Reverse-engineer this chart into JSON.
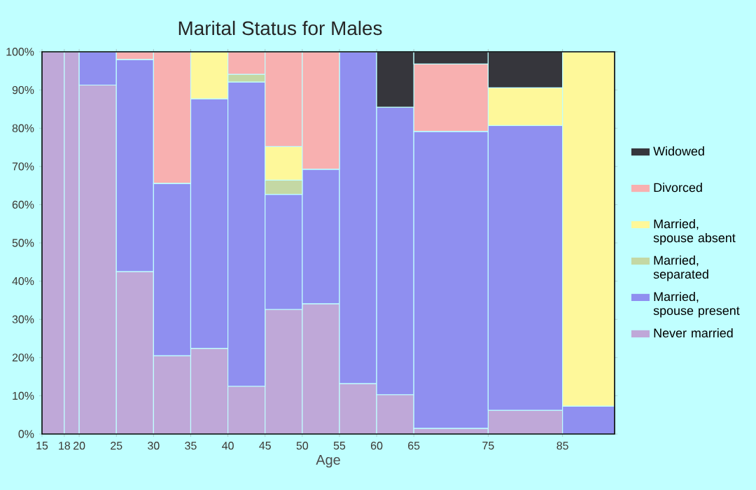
{
  "chart_data": {
    "type": "bar",
    "stacked": true,
    "title": "Marital Status for Males",
    "xlabel": "Age",
    "x": [
      16.5,
      19,
      22.5,
      27.5,
      32.5,
      37.5,
      42.5,
      47.5,
      52.5,
      57.5,
      62.5,
      70,
      80,
      88.5
    ],
    "xlim": [
      15,
      92
    ],
    "xticks": [
      15,
      18,
      20,
      25,
      30,
      35,
      40,
      45,
      50,
      55,
      60,
      65,
      75,
      85
    ],
    "ylim": [
      0,
      100
    ],
    "yticks": [
      {
        "value": 0,
        "label": "0%"
      },
      {
        "value": 10,
        "label": "10%"
      },
      {
        "value": 20,
        "label": "20%"
      },
      {
        "value": 30,
        "label": "30%"
      },
      {
        "value": 40,
        "label": "40%"
      },
      {
        "value": 50,
        "label": "50%"
      },
      {
        "value": 60,
        "label": "60%"
      },
      {
        "value": 70,
        "label": "70%"
      },
      {
        "value": 80,
        "label": "80%"
      },
      {
        "value": 90,
        "label": "90%"
      },
      {
        "value": 100,
        "label": "100%"
      }
    ],
    "legend": "right",
    "grid": false,
    "series": [
      {
        "name": "Never married",
        "color": "#bfa8d8",
        "values": [
          100,
          100,
          91.3,
          42.5,
          20.5,
          22.4,
          12.5,
          32.6,
          34.1,
          13.2,
          10.3,
          1.5,
          6.2,
          0
        ]
      },
      {
        "name": "Married, spouse present",
        "color": "#8f8ff0",
        "values": [
          0,
          0,
          8.7,
          55.5,
          45.1,
          65.3,
          79.6,
          30.1,
          35.2,
          86.8,
          75.2,
          77.7,
          74.5,
          7.3
        ]
      },
      {
        "name": "Married, separated",
        "color": "#c4d8a4",
        "values": [
          0,
          0,
          0,
          0,
          0,
          0,
          2.0,
          3.7,
          0,
          0,
          0,
          0,
          0,
          0
        ]
      },
      {
        "name": "Married, spouse absent",
        "color": "#fef89a",
        "values": [
          0,
          0,
          0,
          0,
          0,
          12.3,
          0,
          8.8,
          0,
          0,
          0,
          0,
          9.9,
          92.7
        ]
      },
      {
        "name": "Divorced",
        "color": "#f8b0b0",
        "values": [
          0,
          0,
          0,
          2.0,
          34.4,
          0,
          5.9,
          24.8,
          30.7,
          0,
          0,
          17.6,
          0,
          0
        ]
      },
      {
        "name": "Widowed",
        "color": "#36363c",
        "values": [
          0,
          0,
          0,
          0,
          0,
          0,
          0,
          0,
          0,
          0,
          14.5,
          3.2,
          9.4,
          0
        ]
      }
    ]
  }
}
